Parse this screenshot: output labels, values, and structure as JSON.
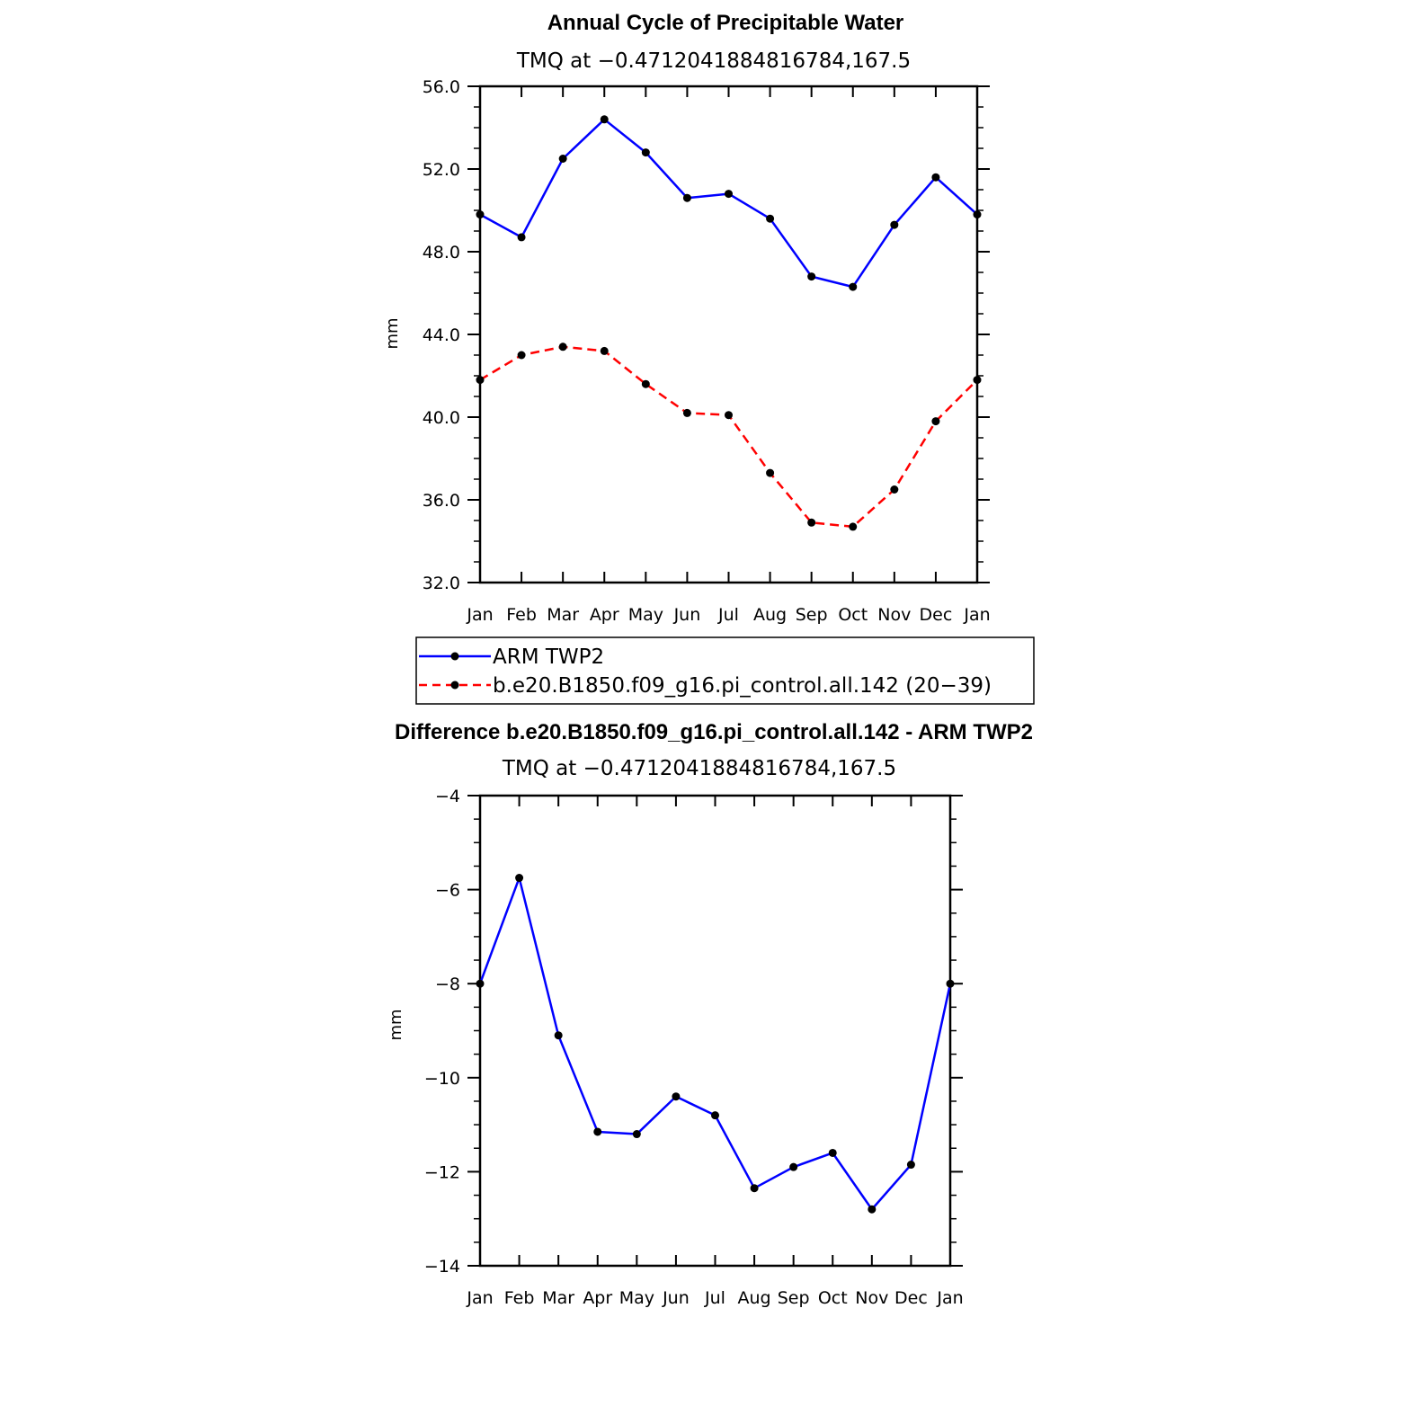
{
  "chart_data": [
    {
      "type": "line",
      "title": "Annual Cycle of Precipitable Water",
      "subtitle": "TMQ at −0.4712041884816784,167.5",
      "xlabel": "",
      "ylabel": "mm",
      "categories": [
        "Jan",
        "Feb",
        "Mar",
        "Apr",
        "May",
        "Jun",
        "Jul",
        "Aug",
        "Sep",
        "Oct",
        "Nov",
        "Dec",
        "Jan"
      ],
      "ylim": [
        32.0,
        56.0
      ],
      "yticks": [
        "32.0",
        "36.0",
        "40.0",
        "44.0",
        "48.0",
        "52.0",
        "56.0"
      ],
      "grid": false,
      "legend_position": "bottom",
      "series": [
        {
          "name": "ARM TWP2",
          "color": "#0000ff",
          "style": "solid",
          "values": [
            49.8,
            48.7,
            52.5,
            54.4,
            52.8,
            50.6,
            50.8,
            49.6,
            46.8,
            46.3,
            49.3,
            51.6,
            49.8
          ]
        },
        {
          "name": "b.e20.B1850.f09_g16.pi_control.all.142 (20−39)",
          "color": "#ff0000",
          "style": "dashed",
          "values": [
            41.8,
            43.0,
            43.4,
            43.2,
            41.6,
            40.2,
            40.1,
            37.3,
            34.9,
            34.7,
            36.5,
            39.8,
            41.8
          ]
        }
      ]
    },
    {
      "type": "line",
      "title": "Difference b.e20.B1850.f09_g16.pi_control.all.142 - ARM TWP2",
      "subtitle": "TMQ at −0.4712041884816784,167.5",
      "xlabel": "",
      "ylabel": "mm",
      "categories": [
        "Jan",
        "Feb",
        "Mar",
        "Apr",
        "May",
        "Jun",
        "Jul",
        "Aug",
        "Sep",
        "Oct",
        "Nov",
        "Dec",
        "Jan"
      ],
      "ylim": [
        -14,
        -4
      ],
      "yticks": [
        "−14",
        "−12",
        "−10",
        "−8",
        "−6",
        "−4"
      ],
      "grid": false,
      "series": [
        {
          "color": "#0000ff",
          "style": "solid",
          "values": [
            -8.0,
            -5.75,
            -9.1,
            -11.15,
            -11.2,
            -10.4,
            -10.8,
            -12.35,
            -11.9,
            -11.6,
            -12.8,
            -11.85,
            -8.0
          ]
        }
      ]
    }
  ]
}
